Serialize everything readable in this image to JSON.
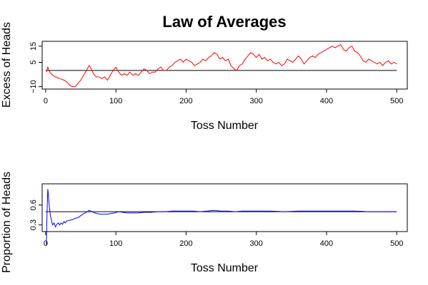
{
  "chart_data": [
    {
      "type": "line",
      "title": "Law of Averages",
      "xlabel": "Toss Number",
      "ylabel": "Excess of Heads",
      "xlim": [
        -5,
        515
      ],
      "ylim": [
        -11.5,
        18
      ],
      "xticks": [
        0,
        100,
        200,
        300,
        400,
        500
      ],
      "yticks": [
        -10,
        5,
        15
      ],
      "ytick_labels": [
        "−10",
        "5",
        "15"
      ],
      "reference_line": 0,
      "line_color": "#ff0000",
      "series": [
        {
          "points": [
            [
              1,
              -1
            ],
            [
              3,
              2
            ],
            [
              6,
              -1
            ],
            [
              10,
              -3
            ],
            [
              14,
              -4
            ],
            [
              20,
              -5
            ],
            [
              26,
              -6
            ],
            [
              30,
              -7
            ],
            [
              34,
              -9
            ],
            [
              38,
              -10
            ],
            [
              42,
              -10
            ],
            [
              46,
              -8
            ],
            [
              50,
              -6
            ],
            [
              54,
              -3
            ],
            [
              58,
              0
            ],
            [
              62,
              3
            ],
            [
              65,
              1
            ],
            [
              68,
              -2
            ],
            [
              72,
              -4
            ],
            [
              76,
              -4
            ],
            [
              80,
              -5
            ],
            [
              84,
              -4
            ],
            [
              88,
              -6
            ],
            [
              92,
              -3
            ],
            [
              96,
              0
            ],
            [
              100,
              2
            ],
            [
              104,
              -1
            ],
            [
              108,
              -3
            ],
            [
              112,
              -2
            ],
            [
              116,
              -3
            ],
            [
              120,
              -1
            ],
            [
              124,
              -3
            ],
            [
              128,
              -2
            ],
            [
              132,
              -3
            ],
            [
              136,
              -1
            ],
            [
              140,
              1
            ],
            [
              144,
              0
            ],
            [
              148,
              -2
            ],
            [
              152,
              -1
            ],
            [
              156,
              -1
            ],
            [
              160,
              1
            ],
            [
              164,
              2
            ],
            [
              168,
              0
            ],
            [
              172,
              0
            ],
            [
              176,
              2
            ],
            [
              180,
              3
            ],
            [
              184,
              5
            ],
            [
              188,
              6
            ],
            [
              192,
              7
            ],
            [
              196,
              5
            ],
            [
              200,
              7
            ],
            [
              204,
              6
            ],
            [
              208,
              5
            ],
            [
              212,
              3
            ],
            [
              216,
              4
            ],
            [
              220,
              5
            ],
            [
              224,
              7
            ],
            [
              228,
              6
            ],
            [
              232,
              8
            ],
            [
              236,
              9
            ],
            [
              240,
              11
            ],
            [
              244,
              10
            ],
            [
              248,
              7
            ],
            [
              252,
              8
            ],
            [
              256,
              6
            ],
            [
              260,
              7
            ],
            [
              264,
              3
            ],
            [
              268,
              1
            ],
            [
              272,
              0
            ],
            [
              276,
              3
            ],
            [
              280,
              4
            ],
            [
              284,
              7
            ],
            [
              288,
              9
            ],
            [
              292,
              11
            ],
            [
              296,
              10
            ],
            [
              300,
              8
            ],
            [
              304,
              10
            ],
            [
              308,
              7
            ],
            [
              312,
              8
            ],
            [
              316,
              6
            ],
            [
              320,
              7
            ],
            [
              324,
              5
            ],
            [
              328,
              4
            ],
            [
              332,
              5
            ],
            [
              336,
              3
            ],
            [
              340,
              4
            ],
            [
              344,
              7
            ],
            [
              348,
              6
            ],
            [
              352,
              5
            ],
            [
              356,
              7
            ],
            [
              360,
              9
            ],
            [
              364,
              7
            ],
            [
              368,
              4
            ],
            [
              372,
              6
            ],
            [
              376,
              8
            ],
            [
              380,
              9
            ],
            [
              384,
              8
            ],
            [
              388,
              10
            ],
            [
              392,
              11
            ],
            [
              396,
              12
            ],
            [
              400,
              13
            ],
            [
              404,
              14
            ],
            [
              408,
              15
            ],
            [
              412,
              14
            ],
            [
              416,
              15
            ],
            [
              420,
              16
            ],
            [
              424,
              13
            ],
            [
              428,
              12
            ],
            [
              432,
              14
            ],
            [
              436,
              15
            ],
            [
              440,
              12
            ],
            [
              444,
              11
            ],
            [
              448,
              9
            ],
            [
              452,
              6
            ],
            [
              456,
              5
            ],
            [
              460,
              7
            ],
            [
              464,
              6
            ],
            [
              468,
              5
            ],
            [
              472,
              4
            ],
            [
              476,
              5
            ],
            [
              480,
              3
            ],
            [
              484,
              5
            ],
            [
              488,
              6
            ],
            [
              492,
              4
            ],
            [
              496,
              5
            ],
            [
              500,
              4
            ]
          ]
        }
      ]
    },
    {
      "type": "line",
      "title": "",
      "xlabel": "Toss Number",
      "ylabel": "Proportion of Heads",
      "xlim": [
        -5,
        515
      ],
      "ylim": [
        0.2,
        0.92
      ],
      "xticks": [
        0,
        100,
        200,
        300,
        400,
        500
      ],
      "yticks": [
        0.3,
        0.6
      ],
      "ytick_labels": [
        "0.3",
        "0.6"
      ],
      "reference_line": 0.5,
      "line_color": "#0000ff",
      "series": [
        {
          "points": [
            [
              1,
              0
            ],
            [
              2,
              0.5
            ],
            [
              3,
              0.84
            ],
            [
              4,
              0.75
            ],
            [
              5,
              0.6
            ],
            [
              6,
              0.5
            ],
            [
              7,
              0.43
            ],
            [
              8,
              0.38
            ],
            [
              9,
              0.33
            ],
            [
              10,
              0.3
            ],
            [
              12,
              0.33
            ],
            [
              14,
              0.27
            ],
            [
              16,
              0.31
            ],
            [
              18,
              0.33
            ],
            [
              20,
              0.3
            ],
            [
              22,
              0.33
            ],
            [
              24,
              0.31
            ],
            [
              26,
              0.35
            ],
            [
              28,
              0.33
            ],
            [
              30,
              0.36
            ],
            [
              34,
              0.37
            ],
            [
              38,
              0.38
            ],
            [
              42,
              0.4
            ],
            [
              46,
              0.41
            ],
            [
              50,
              0.44
            ],
            [
              54,
              0.47
            ],
            [
              58,
              0.49
            ],
            [
              62,
              0.52
            ],
            [
              66,
              0.5
            ],
            [
              70,
              0.48
            ],
            [
              74,
              0.47
            ],
            [
              80,
              0.46
            ],
            [
              86,
              0.46
            ],
            [
              92,
              0.47
            ],
            [
              98,
              0.48
            ],
            [
              104,
              0.5
            ],
            [
              110,
              0.49
            ],
            [
              116,
              0.48
            ],
            [
              124,
              0.48
            ],
            [
              132,
              0.48
            ],
            [
              140,
              0.49
            ],
            [
              150,
              0.49
            ],
            [
              160,
              0.5
            ],
            [
              170,
              0.5
            ],
            [
              180,
              0.51
            ],
            [
              190,
              0.51
            ],
            [
              200,
              0.51
            ],
            [
              210,
              0.51
            ],
            [
              220,
              0.5
            ],
            [
              230,
              0.51
            ],
            [
              240,
              0.52
            ],
            [
              250,
              0.51
            ],
            [
              260,
              0.51
            ],
            [
              270,
              0.5
            ],
            [
              280,
              0.51
            ],
            [
              290,
              0.51
            ],
            [
              300,
              0.51
            ],
            [
              320,
              0.51
            ],
            [
              340,
              0.5
            ],
            [
              360,
              0.51
            ],
            [
              380,
              0.51
            ],
            [
              400,
              0.51
            ],
            [
              420,
              0.51
            ],
            [
              440,
              0.51
            ],
            [
              460,
              0.5
            ],
            [
              480,
              0.5
            ],
            [
              500,
              0.5
            ]
          ]
        }
      ]
    }
  ]
}
